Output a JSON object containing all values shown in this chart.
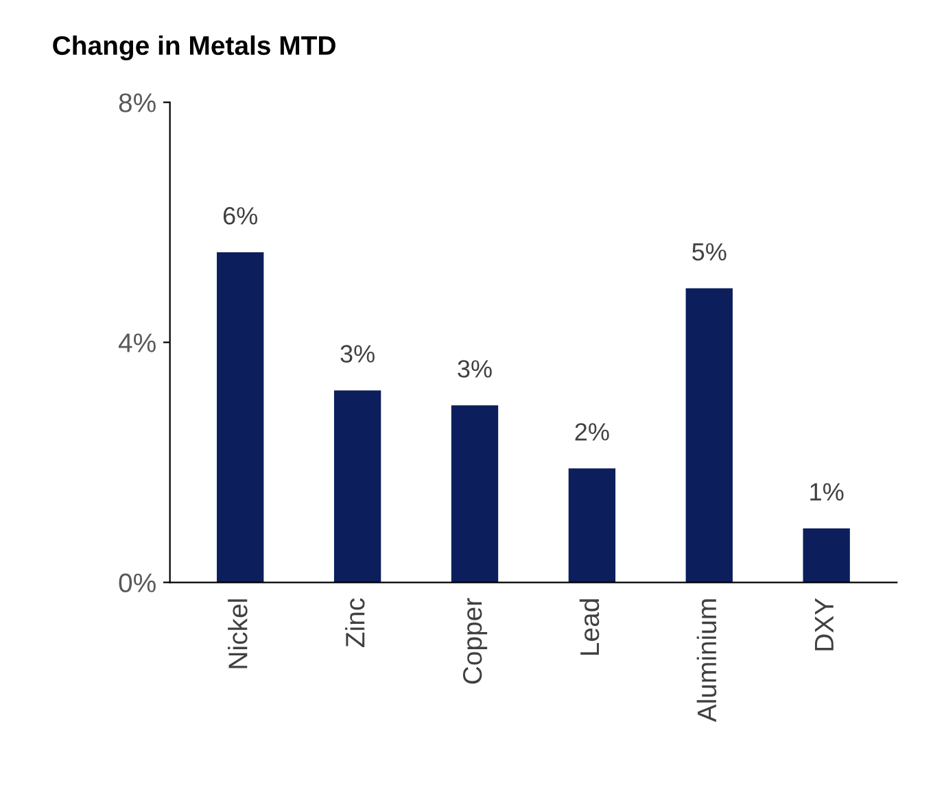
{
  "chart_data": {
    "type": "bar",
    "title": "Change in Metals MTD",
    "categories": [
      "Nickel",
      "Zinc",
      "Copper",
      "Lead",
      "Aluminium",
      "DXY"
    ],
    "values": [
      5.5,
      3.2,
      2.95,
      1.9,
      4.9,
      0.9
    ],
    "value_labels": [
      "6%",
      "3%",
      "3%",
      "2%",
      "5%",
      "1%"
    ],
    "color": "#0c1f5c",
    "ylim": [
      0,
      8
    ],
    "yticks": [
      {
        "value": 0,
        "label": "0%"
      },
      {
        "value": 4,
        "label": "4%"
      },
      {
        "value": 8,
        "label": "8%"
      }
    ],
    "grid": false
  }
}
